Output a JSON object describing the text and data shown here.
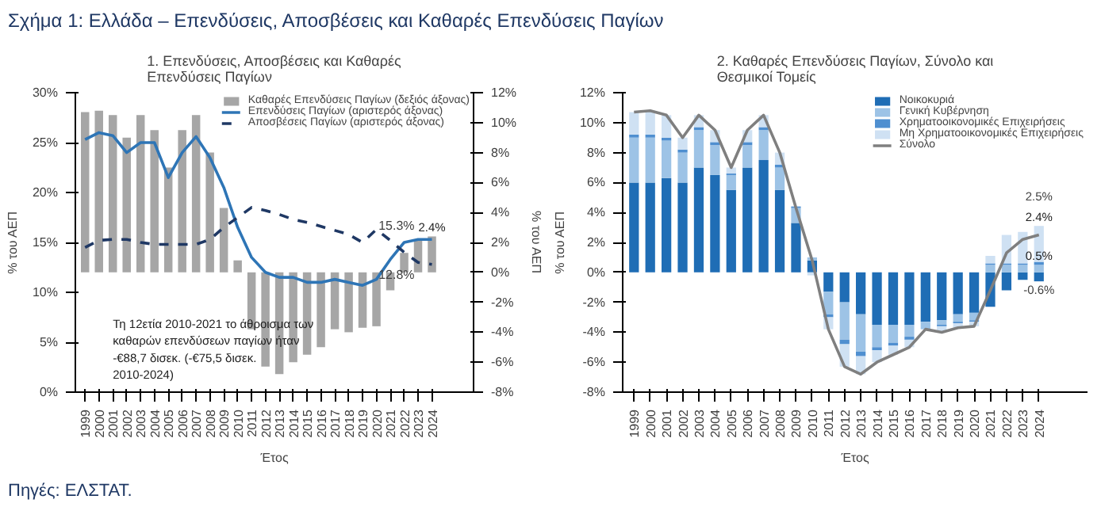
{
  "chart_data": [
    {
      "type": "bar",
      "title": "1. Επενδύσεις, Αποσβέσεις και Καθαρές Επενδύσεις Παγίων",
      "xlabel": "Έτος",
      "ylabel": "% του ΑΕΠ",
      "y2label": "% του ΑΕΠ",
      "categories": [
        "1999",
        "2000",
        "2001",
        "2002",
        "2003",
        "2004",
        "2005",
        "2006",
        "2007",
        "2008",
        "2009",
        "2010",
        "2011",
        "2012",
        "2013",
        "2014",
        "2015",
        "2016",
        "2017",
        "2018",
        "2019",
        "2020",
        "2021",
        "2022",
        "2023",
        "2024"
      ],
      "ylim": [
        0,
        30
      ],
      "yticks": [
        {
          "value": 0,
          "label": "0%"
        },
        {
          "value": 5,
          "label": "5%"
        },
        {
          "value": 10,
          "label": "10%"
        },
        {
          "value": 15,
          "label": "15%"
        },
        {
          "value": 20,
          "label": "20%"
        },
        {
          "value": 25,
          "label": "25%"
        },
        {
          "value": 30,
          "label": "30%"
        }
      ],
      "y2lim": [
        -8,
        12
      ],
      "y2ticks": [
        {
          "value": -8,
          "label": "-8%"
        },
        {
          "value": -6,
          "label": "-6%"
        },
        {
          "value": -4,
          "label": "-4%"
        },
        {
          "value": -2,
          "label": "-2%"
        },
        {
          "value": 0,
          "label": "0%"
        },
        {
          "value": 2,
          "label": "2%"
        },
        {
          "value": 4,
          "label": "4%"
        },
        {
          "value": 6,
          "label": "6%"
        },
        {
          "value": 8,
          "label": "8%"
        },
        {
          "value": 10,
          "label": "10%"
        },
        {
          "value": 12,
          "label": "12%"
        }
      ],
      "legend": "top right",
      "series": [
        {
          "name": "Καθαρές Επενδύσεις Παγίων (δεξιός άξονας)",
          "axis": "y2",
          "color": "#a6a6a6",
          "values": [
            10.7,
            10.8,
            10.5,
            9.0,
            10.5,
            9.5,
            7.0,
            9.5,
            10.5,
            8.0,
            4.3,
            0.8,
            -3.8,
            -6.3,
            -6.8,
            -6.0,
            -5.5,
            -5.0,
            -3.8,
            -4.0,
            -3.7,
            -3.6,
            -1.2,
            1.3,
            2.2,
            2.4
          ],
          "value_labels": [
            null,
            null,
            null,
            null,
            null,
            null,
            null,
            null,
            null,
            null,
            null,
            null,
            null,
            null,
            null,
            null,
            null,
            null,
            null,
            null,
            null,
            null,
            null,
            null,
            null,
            "2.4%"
          ]
        },
        {
          "name": "Επενδύσεις Παγίων (αριστερός άξονας)",
          "type": "line",
          "color": "#2e75b6",
          "line_style": "solid",
          "values": [
            25.3,
            26.0,
            25.7,
            24.0,
            25.0,
            25.0,
            21.5,
            24.0,
            25.6,
            23.5,
            20.5,
            16.5,
            13.5,
            12.0,
            11.5,
            11.5,
            11.0,
            11.0,
            11.3,
            11.0,
            10.7,
            11.3,
            13.3,
            15.0,
            15.3,
            15.3
          ]
        },
        {
          "name": "Αποσβέσεις Παγίων (αριστερός άξονας)",
          "type": "line",
          "color": "#1f3864",
          "line_style": "dashed",
          "values": [
            14.5,
            15.2,
            15.3,
            15.3,
            15.0,
            14.8,
            14.8,
            14.8,
            14.8,
            15.3,
            16.5,
            17.5,
            18.5,
            18.2,
            17.8,
            17.3,
            17.0,
            16.6,
            16.2,
            15.8,
            15.0,
            16.3,
            15.2,
            14.0,
            13.0,
            12.8
          ]
        }
      ],
      "annotations": [
        "Σχήμα 1: Ελλάδα – Επενδύσεις, Αποσβέσεις και Καθαρές Επενδύσεις Παγίων",
        "Τη 12ετία 2010-2021 το άθροισμα των καθαρών επενδύσεων παγίων ήταν -€88,7 δισεκ. (-€75,5 δισεκ. 2010-2024)",
        "Πηγές: ΕΛΣΤΑΤ.",
        {
          "text": "15.3%",
          "x": "2024",
          "y": 15.3
        },
        {
          "text": "12.8%",
          "x": "2024",
          "y": 12.8
        }
      ]
    },
    {
      "type": "bar",
      "title": "2. Καθαρές Επενδύσεις Παγίων, Σύνολο και Θεσμικοί Τομείς",
      "xlabel": "Έτος",
      "ylabel": "% του ΑΕΠ",
      "stacked": true,
      "categories": [
        "1999",
        "2000",
        "2001",
        "2002",
        "2003",
        "2004",
        "2005",
        "2006",
        "2007",
        "2008",
        "2009",
        "2010",
        "2011",
        "2012",
        "2013",
        "2014",
        "2015",
        "2016",
        "2017",
        "2018",
        "2019",
        "2020",
        "2021",
        "2022",
        "2023",
        "2024"
      ],
      "ylim": [
        -8,
        12
      ],
      "yticks": [
        {
          "value": -8,
          "label": "-8%"
        },
        {
          "value": -6,
          "label": "-6%"
        },
        {
          "value": -4,
          "label": "-4%"
        },
        {
          "value": -2,
          "label": "-2%"
        },
        {
          "value": 0,
          "label": "0%"
        },
        {
          "value": 2,
          "label": "2%"
        },
        {
          "value": 4,
          "label": "4%"
        },
        {
          "value": 6,
          "label": "6%"
        },
        {
          "value": 8,
          "label": "8%"
        },
        {
          "value": 10,
          "label": "10%"
        },
        {
          "value": 12,
          "label": "12%"
        }
      ],
      "legend": "top right",
      "series": [
        {
          "name": "Νοικοκυριά",
          "color": "#1f6db5",
          "values": [
            6.0,
            6.0,
            6.3,
            6.0,
            7.0,
            6.5,
            5.5,
            7.0,
            7.5,
            5.5,
            3.3,
            0.8,
            -1.3,
            -2.0,
            -2.8,
            -3.5,
            -3.5,
            -3.5,
            -3.3,
            -3.2,
            -2.8,
            -2.7,
            -2.3,
            -1.2,
            -0.5,
            -0.6
          ],
          "value_labels": [
            null,
            null,
            null,
            null,
            null,
            null,
            null,
            null,
            null,
            null,
            null,
            null,
            null,
            null,
            null,
            null,
            null,
            null,
            null,
            null,
            null,
            null,
            null,
            null,
            null,
            "-0.6%"
          ]
        },
        {
          "name": "Γενική Κυβέρνηση",
          "color": "#9dc3e6",
          "values": [
            3.0,
            3.0,
            2.5,
            2.0,
            2.5,
            2.0,
            1.0,
            1.5,
            2.0,
            1.5,
            1.0,
            0.2,
            -1.5,
            -2.5,
            -2.5,
            -1.5,
            -1.2,
            -0.8,
            -0.5,
            -0.3,
            -0.5,
            -0.5,
            0.5,
            0.5,
            0.5,
            0.5
          ],
          "value_labels": [
            null,
            null,
            null,
            null,
            null,
            null,
            null,
            null,
            null,
            null,
            null,
            null,
            null,
            null,
            null,
            null,
            null,
            null,
            null,
            null,
            null,
            null,
            null,
            null,
            null,
            "0.5%"
          ]
        },
        {
          "name": "Χρηματοοικονομικές Επιχειρήσεις",
          "color": "#4f8fd0",
          "values": [
            0.2,
            0.2,
            0.2,
            0.2,
            0.2,
            0.2,
            0.1,
            0.2,
            0.2,
            0.2,
            0.1,
            0.0,
            -0.2,
            -0.3,
            -0.3,
            -0.2,
            -0.2,
            -0.2,
            null,
            -0.1,
            -0.1,
            -0.1,
            0.1,
            0.1,
            0.1,
            0.2
          ]
        },
        {
          "name": "Μη Χρηματοοικονομικές Επιχειρήσεις",
          "color": "#cfe1f3",
          "values": [
            1.5,
            1.6,
            1.5,
            0.8,
            0.8,
            0.8,
            0.4,
            0.8,
            0.8,
            0.8,
            null,
            -0.2,
            -0.8,
            -1.5,
            -1.2,
            -0.8,
            -0.6,
            -0.5,
            null,
            -0.4,
            -0.3,
            -0.3,
            0.5,
            1.9,
            2.1,
            2.4
          ],
          "value_labels": [
            null,
            null,
            null,
            null,
            null,
            null,
            null,
            null,
            null,
            null,
            null,
            null,
            null,
            null,
            null,
            null,
            null,
            null,
            null,
            null,
            null,
            null,
            null,
            null,
            null,
            "2.4%"
          ]
        },
        {
          "name": "Σύνολο",
          "type": "line",
          "color": "#7f7f7f",
          "line_style": "solid",
          "values": [
            10.7,
            10.8,
            10.5,
            9.0,
            10.5,
            9.5,
            7.0,
            9.5,
            10.5,
            8.0,
            4.3,
            0.8,
            -3.8,
            -6.3,
            -6.8,
            -6.0,
            -5.5,
            -5.0,
            -3.8,
            -4.0,
            -3.7,
            -3.6,
            -1.2,
            1.3,
            2.2,
            2.5
          ],
          "value_labels": [
            null,
            null,
            null,
            null,
            null,
            null,
            null,
            null,
            null,
            null,
            null,
            null,
            null,
            null,
            null,
            null,
            null,
            null,
            null,
            null,
            null,
            null,
            null,
            null,
            null,
            "2.5%"
          ]
        }
      ]
    }
  ]
}
